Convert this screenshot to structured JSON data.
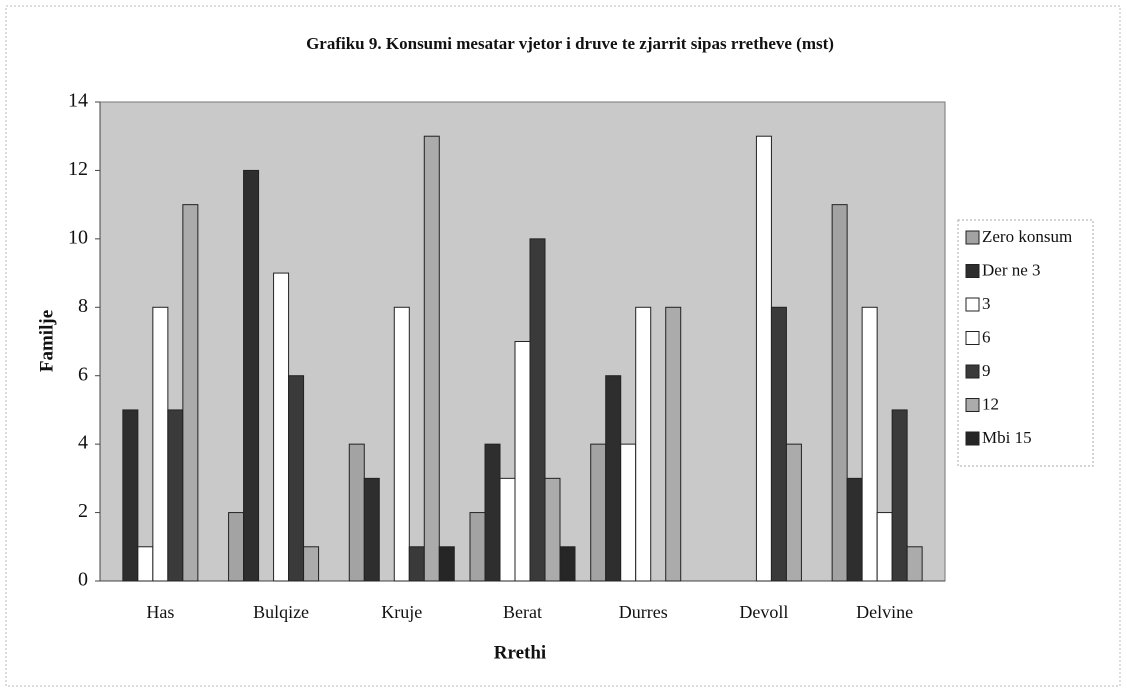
{
  "chart_data": {
    "type": "bar",
    "title": "Grafiku 9. Konsumi mesatar vjetor i druve te zjarrit sipas rretheve (mst)",
    "x_label": "Rrethi",
    "y_label": "Familje",
    "categories": [
      "Has",
      "Bulqize",
      "Kruje",
      "Berat",
      "Durres",
      "Devoll",
      "Delvine"
    ],
    "series": [
      {
        "name": "Zero konsum",
        "color": "#a3a3a3",
        "values": [
          0,
          2,
          4,
          2,
          4,
          0,
          11
        ]
      },
      {
        "name": "Der ne 3",
        "color": "#2e2e2e",
        "values": [
          5,
          12,
          3,
          4,
          6,
          0,
          3
        ]
      },
      {
        "name": "3",
        "color": "#ffffff",
        "values": [
          1,
          0,
          0,
          3,
          4,
          0,
          8
        ]
      },
      {
        "name": "6",
        "color": "#ffffff",
        "values": [
          8,
          9,
          8,
          7,
          8,
          13,
          2
        ]
      },
      {
        "name": "9",
        "color": "#3a3a3a",
        "values": [
          5,
          6,
          1,
          10,
          0,
          8,
          5
        ]
      },
      {
        "name": "12",
        "color": "#ababab",
        "values": [
          11,
          1,
          13,
          3,
          8,
          4,
          1
        ]
      },
      {
        "name": "Mbi 15",
        "color": "#262626",
        "values": [
          0,
          0,
          1,
          1,
          0,
          0,
          0
        ]
      }
    ],
    "ylim": [
      0,
      14
    ],
    "yticks": [
      0,
      2,
      4,
      6,
      8,
      10,
      12,
      14
    ],
    "grid": false,
    "legend": "right"
  }
}
